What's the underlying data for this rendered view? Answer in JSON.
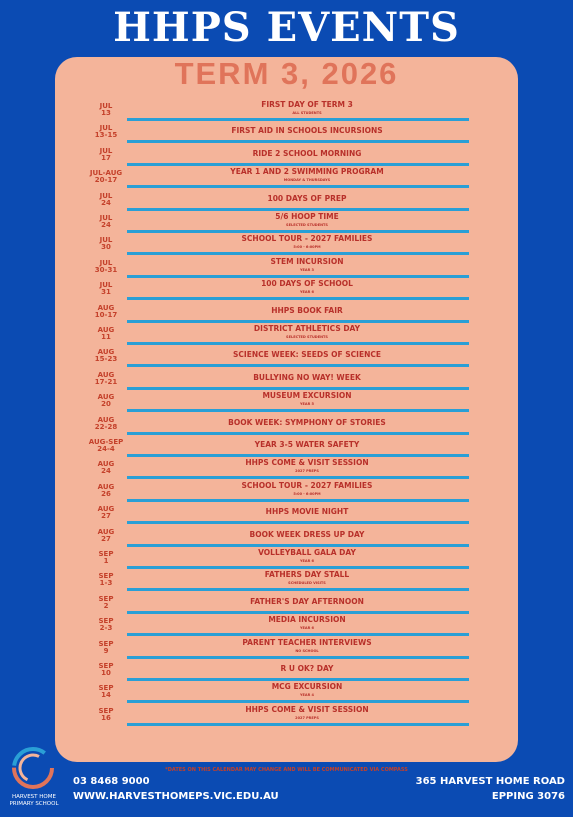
{
  "header": {
    "title": "HHPS EVENTS",
    "term": "TERM 3, 2026"
  },
  "events": [
    {
      "month": "JUL",
      "day": "13",
      "title": "FIRST DAY OF TERM 3",
      "subtitle": "ALL STUDENTS"
    },
    {
      "month": "JUL",
      "day": "13-15",
      "title": "FIRST AID IN SCHOOLS INCURSIONS"
    },
    {
      "month": "JUL",
      "day": "17",
      "title": "RIDE 2 SCHOOL MORNING"
    },
    {
      "month": "JUL-AUG",
      "day": "20-17",
      "title": "YEAR 1 AND 2 SWIMMING PROGRAM",
      "subtitle": "MONDAY & THURSDAYS"
    },
    {
      "month": "JUL",
      "day": "24",
      "title": "100 DAYS OF PREP"
    },
    {
      "month": "JUL",
      "day": "24",
      "title": "5/6 HOOP TIME",
      "subtitle": "SELECTED STUDENTS"
    },
    {
      "month": "JUL",
      "day": "30",
      "title": "SCHOOL TOUR - 2027 FAMILIES",
      "subtitle": "5:00 - 6:00PM"
    },
    {
      "month": "JUL",
      "day": "30-31",
      "title": "STEM INCURSION",
      "subtitle": "YEAR 3"
    },
    {
      "month": "JUL",
      "day": "31",
      "title": "100 DAYS OF SCHOOL",
      "subtitle": "YEAR 6"
    },
    {
      "month": "AUG",
      "day": "10-17",
      "title": "HHPS BOOK FAIR"
    },
    {
      "month": "AUG",
      "day": "11",
      "title": "DISTRICT ATHLETICS DAY",
      "subtitle": "SELECTED STUDENTS"
    },
    {
      "month": "AUG",
      "day": "15-23",
      "title": "SCIENCE WEEK: SEEDS OF SCIENCE"
    },
    {
      "month": "AUG",
      "day": "17-21",
      "title": "BULLYING NO WAY! WEEK"
    },
    {
      "month": "AUG",
      "day": "20",
      "title": "MUSEUM EXCURSION",
      "subtitle": "YEAR 5"
    },
    {
      "month": "AUG",
      "day": "22-28",
      "title": "BOOK WEEK: SYMPHONY OF STORIES"
    },
    {
      "month": "AUG-SEP",
      "day": "24-4",
      "title": "YEAR 3-5 WATER SAFETY"
    },
    {
      "month": "AUG",
      "day": "24",
      "title": "HHPS COME & VISIT SESSION",
      "subtitle": "2027 PREPS"
    },
    {
      "month": "AUG",
      "day": "26",
      "title": "SCHOOL TOUR - 2027 FAMILIES",
      "subtitle": "5:00 - 6:00PM"
    },
    {
      "month": "AUG",
      "day": "27",
      "title": "HHPS MOVIE NIGHT"
    },
    {
      "month": "AUG",
      "day": "27",
      "title": "BOOK WEEK DRESS UP DAY"
    },
    {
      "month": "SEP",
      "day": "1",
      "title": "VOLLEYBALL GALA DAY",
      "subtitle": "YEAR 6"
    },
    {
      "month": "SEP",
      "day": "1-3",
      "title": "FATHERS DAY STALL",
      "subtitle": "SCHEDULED VISITS"
    },
    {
      "month": "SEP",
      "day": "2",
      "title": "FATHER'S DAY AFTERNOON"
    },
    {
      "month": "SEP",
      "day": "2-3",
      "title": "MEDIA INCURSION",
      "subtitle": "YEAR 6"
    },
    {
      "month": "SEP",
      "day": "9",
      "title": "PARENT TEACHER INTERVIEWS",
      "subtitle": "NO SCHOOL"
    },
    {
      "month": "SEP",
      "day": "10",
      "title": "R U OK? DAY"
    },
    {
      "month": "SEP",
      "day": "14",
      "title": "MCG EXCURSION",
      "subtitle": "YEAR 4"
    },
    {
      "month": "SEP",
      "day": "16",
      "title": "HHPS COME & VISIT SESSION",
      "subtitle": "2027 PREPS"
    }
  ],
  "note": "*DATES ON THIS CALENDAR MAY CHANGE AND WILL BE COMMUNICATED VIA COMPASS",
  "footer": {
    "school_line1": "HARVEST HOME",
    "school_line2": "PRIMARY SCHOOL",
    "phone": "03 8468 9000",
    "website": "WWW.HARVESTHOMEPS.VIC.EDU.AU",
    "address_line1": "365 HARVEST HOME ROAD",
    "address_line2": "EPPING 3076"
  }
}
